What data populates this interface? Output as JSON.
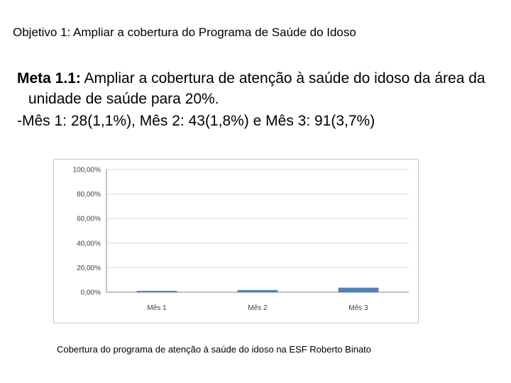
{
  "slide": {
    "title": "Objetivo 1: Ampliar a cobertura do Programa de Saúde do Idoso",
    "meta_label": "Meta 1.1:",
    "meta_text": " Ampliar a cobertura de atenção à saúde do idoso da área da unidade de saúde para 20%.",
    "months_text": "-Mês 1: 28(1,1%), Mês 2: 43(1,8%) e Mês 3: 91(3,7%)",
    "caption": "Cobertura do programa de atenção à saúde do idoso na ESF Roberto Binato"
  },
  "chart_data": {
    "type": "bar",
    "categories": [
      "Mês 1",
      "Mês 2",
      "Mês 3"
    ],
    "values": [
      1.1,
      1.8,
      3.7
    ],
    "ylim": [
      0,
      100
    ],
    "yticks": [
      0,
      20,
      40,
      60,
      80,
      100
    ],
    "ytick_labels": [
      "0,00%",
      "20,00%",
      "40,00%",
      "60,00%",
      "80,00%",
      "100,00%"
    ],
    "grid": true,
    "legend": "none",
    "colors": {
      "bar": "#4f81bd",
      "grid": "#d9d9d9",
      "axis": "#868686"
    }
  }
}
